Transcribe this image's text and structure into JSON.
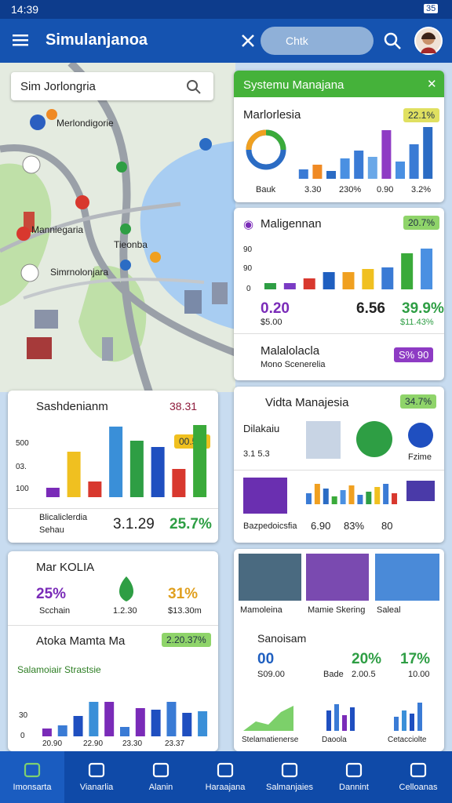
{
  "status": {
    "time": "14:39",
    "battery": "35"
  },
  "appbar": {
    "title": "Simulanjanoa",
    "search": "Chtk"
  },
  "map": {
    "search": "Sim Jorlongria",
    "labels": [
      "Merlondigorie",
      "Manniegaria",
      "Tieonba",
      "Simrnolonjara"
    ]
  },
  "card1": {
    "header": "Systemu Manajana",
    "title": "Marlorlesia",
    "badge": "22.1%",
    "bars": [
      12,
      18,
      10,
      26,
      36,
      28,
      62,
      22,
      44,
      66
    ],
    "bar_colors": [
      "#3a7bd5",
      "#f08a24",
      "#2b6cc4",
      "#4a90e2",
      "#3a7bd5",
      "#6aa8e8",
      "#8e3bc4",
      "#4a90e2",
      "#3a7bd5",
      "#2b6cc4"
    ],
    "axis": [
      "Bauk",
      "3.30",
      "230%",
      "0.90",
      "3.2%"
    ]
  },
  "card2": {
    "title": "Maligennan",
    "badge": "20.7%",
    "yticks": [
      "90",
      "90",
      "0"
    ],
    "bars": [
      8,
      8,
      14,
      22,
      22,
      26,
      28,
      46,
      52
    ],
    "bar_colors": [
      "#2e9e44",
      "#7a3bc4",
      "#d8382e",
      "#1f5fc0",
      "#f0a020",
      "#f0c020",
      "#3a7bd5",
      "#3aaa3a",
      "#4a90e2"
    ],
    "stats": [
      "0.20",
      "6.56",
      "39.9%"
    ],
    "subs": [
      "$5.00",
      "$11.43%"
    ],
    "row_title": "Malalolacla",
    "row_sub": "Mono Scenerelia",
    "row_badge": "S% 90"
  },
  "card3": {
    "title": "Sashdenianm",
    "value": "38.31",
    "badge": "00.5%",
    "yticks": [
      "500",
      "03.",
      "100"
    ],
    "bars": [
      12,
      58,
      20,
      90,
      72,
      64,
      36,
      92
    ],
    "bar_colors": [
      "#7a2bb8",
      "#f0c020",
      "#d8382e",
      "#3a8fd8",
      "#2e9e44",
      "#1f4fc0",
      "#d8382e",
      "#3aaa3a"
    ],
    "footer": [
      "Blicaliclerdia",
      "Sehau"
    ],
    "stats": [
      "3.1.29",
      "25.7%"
    ]
  },
  "card4": {
    "title": "Vidta Manajesia",
    "badge": "34.7%",
    "name": "Dilakaiu",
    "rating": "3.1 5.3",
    "side": "Fzime",
    "bars": [
      14,
      26,
      20,
      10,
      18,
      24,
      12,
      16,
      22,
      26,
      14
    ],
    "bar_colors": [
      "#3a7bd5",
      "#f0a020",
      "#2b6cc4",
      "#3aaa3a",
      "#4a90e2",
      "#f0a020",
      "#3a7bd5",
      "#2e9e44",
      "#f0c020",
      "#3a7bd5",
      "#d8382e"
    ],
    "footer": "Bazpedoicsfia",
    "stats": [
      "6.90",
      "83%",
      "80"
    ]
  },
  "card5": {
    "title": "Mar KOLIA",
    "stats": [
      "25%",
      "31%"
    ],
    "subs": [
      "Scchain",
      "1.2.30",
      "$13.30m"
    ],
    "section": "Atoka Mamta Ma",
    "badge": "2.20.37%",
    "sub": "Salamoiair Strastsie",
    "yticks": [
      "30",
      "0"
    ],
    "bars": [
      10,
      14,
      26,
      44,
      44,
      12,
      36,
      34,
      44,
      30,
      32
    ],
    "bar_colors": [
      "#7a2bb8",
      "#3a7bd5",
      "#1f4fc0",
      "#3a8fd8",
      "#7a2bb8",
      "#3a7bd5",
      "#7a2bb8",
      "#1f4fc0",
      "#3a7bd5",
      "#1f4fc0",
      "#3a8fd8"
    ],
    "xlabels": [
      "20.90",
      "22.90",
      "23.30",
      "23.37"
    ]
  },
  "card6": {
    "images": [
      "Mamoleina",
      "Mamie Skering",
      "Saleal"
    ],
    "title": "Sanoisam",
    "stats": [
      "00",
      "20%",
      "17%"
    ],
    "subs": [
      "S09.00",
      "Bade",
      "2.00.5",
      "10.00"
    ],
    "charts": [
      "Stelamatienerse",
      "Daoola",
      "Cetacciolte"
    ]
  },
  "nav": [
    "Imonsarta",
    "Vianarlia",
    "Alanin",
    "Haraajana",
    "Salmanjaies",
    "Dannint",
    "Celloanas"
  ]
}
